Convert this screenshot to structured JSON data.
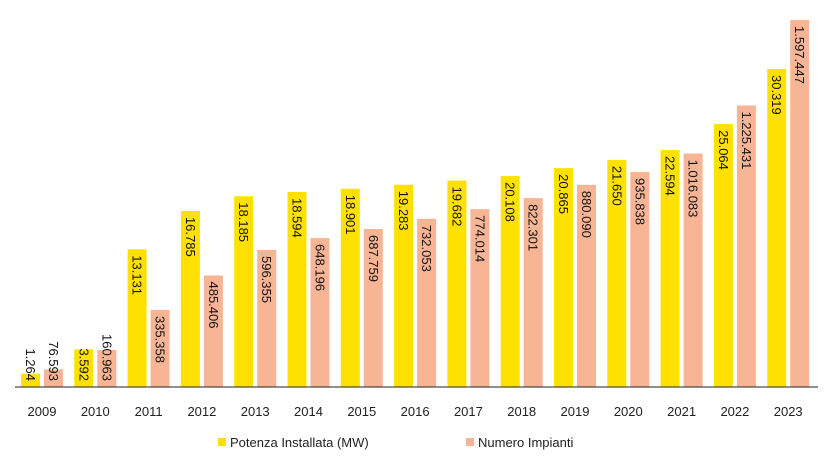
{
  "chart_data": {
    "type": "bar",
    "title": "",
    "xlabel": "",
    "ylabel": "",
    "categories": [
      "2009",
      "2010",
      "2011",
      "2012",
      "2013",
      "2014",
      "2015",
      "2016",
      "2017",
      "2018",
      "2019",
      "2020",
      "2021",
      "2022",
      "2023"
    ],
    "series": [
      {
        "name": "Potenza Installata (MW)",
        "color": "#FFE100",
        "values": [
          1264,
          3592,
          13131,
          16785,
          18185,
          18594,
          18901,
          19283,
          19682,
          20108,
          20865,
          21650,
          22594,
          25064,
          30319
        ],
        "labels": [
          "1.264",
          "3.592",
          "13.131",
          "16.785",
          "18.185",
          "18.594",
          "18.901",
          "19.283",
          "19.682",
          "20.108",
          "20.865",
          "21.650",
          "22.594",
          "25.064",
          "30.319"
        ],
        "ylim": [
          0,
          30319
        ]
      },
      {
        "name": "Numero Impianti",
        "color": "#F8B595",
        "values": [
          76593,
          160963,
          335358,
          485406,
          596355,
          648196,
          687759,
          732053,
          774014,
          822301,
          880090,
          935838,
          1016083,
          1225431,
          1597447
        ],
        "labels": [
          "76.593",
          "160.963",
          "335.358",
          "485.406",
          "596.355",
          "648.196",
          "687.759",
          "732.053",
          "774.014",
          "822.301",
          "880.090",
          "935.838",
          "1.016.083",
          "1.225.431",
          "1.597.447"
        ],
        "ylim": [
          0,
          1597447
        ]
      }
    ],
    "legend": "bottom",
    "grid": false
  }
}
